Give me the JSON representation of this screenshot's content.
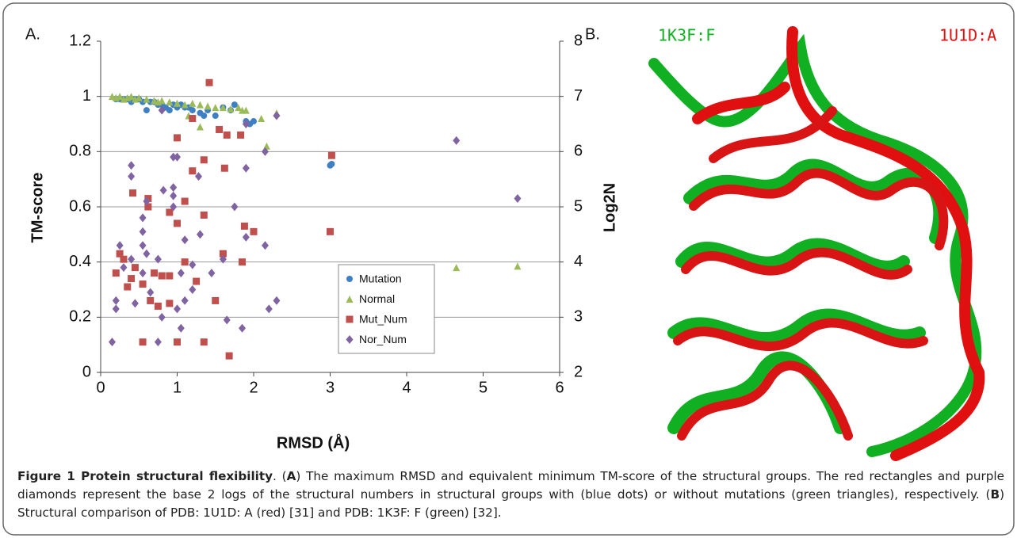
{
  "chart_data": {
    "type": "scatter",
    "panel_label": "A.",
    "xlabel": "RMSD (Å)",
    "ylabel": "TM-score",
    "y2label": "Log2N",
    "xlim": [
      0,
      6
    ],
    "xticks": [
      0,
      1,
      2,
      3,
      4,
      5,
      6
    ],
    "ylim": [
      0,
      1.2
    ],
    "yticks": [
      0,
      0.2,
      0.4,
      0.6,
      0.8,
      1,
      1.2
    ],
    "y2lim": [
      2,
      8
    ],
    "y2ticks": [
      2,
      3,
      4,
      5,
      6,
      7,
      8
    ],
    "grid": true,
    "series": [
      {
        "name": "Mutation",
        "color": "#3f7fc4",
        "marker": "circle",
        "axis": "y",
        "x": [
          0.2,
          0.25,
          0.3,
          0.35,
          0.4,
          0.45,
          0.5,
          0.55,
          0.6,
          0.65,
          0.7,
          0.75,
          0.8,
          0.85,
          0.9,
          0.95,
          1.0,
          1.05,
          1.1,
          1.15,
          1.2,
          1.3,
          1.35,
          1.4,
          1.5,
          1.6,
          1.7,
          1.75,
          1.9,
          1.95,
          2.0,
          3.0,
          3.02
        ],
        "values": [
          0.99,
          0.99,
          0.99,
          0.99,
          0.98,
          0.99,
          0.99,
          0.98,
          0.95,
          0.98,
          0.98,
          0.97,
          0.97,
          0.96,
          0.95,
          0.97,
          0.96,
          0.97,
          0.96,
          0.96,
          0.95,
          0.94,
          0.93,
          0.95,
          0.93,
          0.96,
          0.95,
          0.97,
          0.91,
          0.9,
          0.91,
          0.75,
          0.755
        ]
      },
      {
        "name": "Normal",
        "color": "#9bbb59",
        "marker": "triangle",
        "axis": "y",
        "x": [
          0.15,
          0.2,
          0.25,
          0.3,
          0.35,
          0.4,
          0.45,
          0.5,
          0.6,
          0.7,
          0.75,
          0.8,
          0.9,
          1.0,
          1.1,
          1.15,
          1.2,
          1.3,
          1.3,
          1.4,
          1.5,
          1.6,
          1.7,
          1.8,
          1.85,
          1.9,
          2.1,
          2.17,
          2.3,
          4.65,
          5.45
        ],
        "values": [
          1.0,
          0.995,
          1.0,
          0.99,
          0.995,
          1.0,
          0.99,
          0.995,
          0.99,
          0.985,
          0.98,
          0.985,
          0.98,
          0.975,
          0.97,
          0.93,
          0.975,
          0.97,
          0.89,
          0.965,
          0.96,
          0.96,
          0.955,
          0.96,
          0.95,
          0.95,
          0.92,
          0.82,
          0.94,
          0.38,
          0.385
        ]
      },
      {
        "name": "Mut_Num",
        "color": "#c0504d",
        "marker": "square",
        "axis": "y2",
        "x": [
          1.42,
          1.2,
          1.55,
          1.65,
          1.83,
          1.0,
          3.02,
          1.35,
          1.2,
          1.62,
          0.62,
          0.42,
          1.1,
          0.62,
          0.9,
          1.0,
          1.35,
          1.88,
          2.0,
          3.0,
          1.6,
          0.25,
          0.3,
          1.1,
          1.85,
          0.45,
          0.7,
          0.9,
          0.2,
          0.4,
          0.35,
          0.55,
          0.8,
          1.25,
          0.65,
          0.75,
          0.9,
          1.5,
          0.55,
          1.0,
          1.35,
          1.68
        ],
        "values": [
          7.25,
          6.6,
          6.4,
          6.3,
          6.3,
          6.25,
          5.93,
          5.85,
          5.65,
          5.7,
          5.15,
          5.25,
          5.1,
          5.0,
          4.9,
          4.7,
          4.85,
          4.65,
          4.55,
          4.55,
          4.15,
          4.15,
          4.05,
          4.0,
          4.0,
          3.9,
          3.8,
          3.75,
          3.8,
          3.7,
          3.55,
          3.6,
          3.75,
          3.65,
          3.3,
          3.2,
          3.25,
          3.3,
          2.55,
          2.55,
          2.55,
          2.3
        ]
      },
      {
        "name": "Nor_Num",
        "color": "#8064a2",
        "marker": "diamond",
        "axis": "y2",
        "x": [
          4.65,
          5.45,
          2.15,
          2.3,
          0.8,
          1.9,
          0.4,
          0.4,
          0.95,
          1.0,
          1.28,
          1.9,
          0.95,
          0.82,
          0.95,
          0.6,
          0.95,
          0.25,
          0.55,
          0.55,
          1.1,
          1.3,
          1.75,
          1.9,
          2.15,
          0.3,
          0.4,
          0.6,
          0.55,
          0.75,
          1.05,
          1.2,
          1.45,
          1.6,
          0.2,
          0.2,
          0.45,
          0.55,
          0.65,
          0.8,
          1.0,
          1.1,
          1.2,
          1.05,
          1.65,
          1.85,
          2.2,
          2.3,
          0.15,
          0.75
        ],
        "values": [
          6.2,
          5.15,
          6.0,
          6.65,
          6.75,
          6.5,
          5.75,
          5.55,
          5.9,
          5.9,
          5.55,
          5.7,
          5.2,
          5.3,
          5.35,
          5.1,
          5.0,
          4.3,
          4.55,
          4.8,
          4.4,
          4.5,
          5.0,
          4.45,
          4.3,
          3.9,
          4.05,
          4.15,
          4.3,
          4.05,
          3.8,
          3.95,
          3.8,
          4.05,
          3.3,
          3.15,
          3.25,
          3.8,
          3.45,
          3.0,
          3.15,
          3.3,
          3.5,
          2.8,
          2.95,
          2.8,
          3.15,
          3.3,
          2.55,
          2.55
        ]
      }
    ]
  },
  "image_panel": {
    "panel_label": "B.",
    "label_green": "1K3F:F",
    "label_red": "1U1D:A"
  },
  "caption": [
    {
      "text": "Figure 1 Protein structural flexibility",
      "bold": true
    },
    {
      "text": ". (",
      "bold": false
    },
    {
      "text": "A",
      "bold": true
    },
    {
      "text": ") The maximum RMSD and equivalent minimum TM-score of the structural groups. The red rectangles and purple diamonds represent the base 2 logs of the structural numbers in structural groups with (blue dots) or without mutations (green triangles), respectively. (",
      "bold": false
    },
    {
      "text": "B",
      "bold": true
    },
    {
      "text": ") Structural comparison of PDB: 1U1D: A (red) [31] and PDB: 1K3F: F (green) [32].",
      "bold": false
    }
  ]
}
